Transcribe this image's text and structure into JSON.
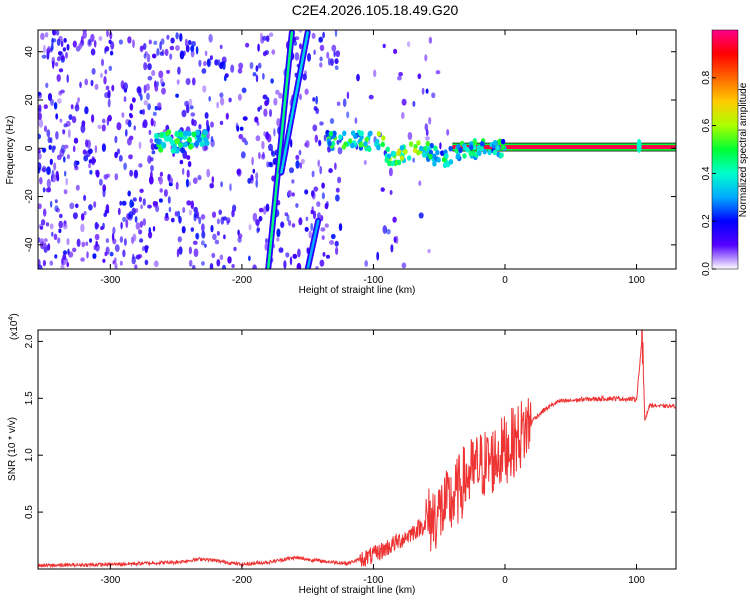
{
  "figure_title": "C2E4.2026.105.18.49.G20",
  "chart_data": [
    {
      "type": "heatmap",
      "title": "C2E4.2026.105.18.49.G20",
      "xlabel": "Height of straight line (km)",
      "ylabel": "Frequency (Hz)",
      "xlim": [
        -355,
        130
      ],
      "ylim": [
        -50,
        49
      ],
      "xticks": [
        -300,
        -200,
        -100,
        0,
        100
      ],
      "xtick_labels": [
        "-300",
        "-200",
        "-100",
        "0",
        "100"
      ],
      "yticks": [
        -40,
        -20,
        0,
        20,
        40
      ],
      "ytick_labels": [
        "-40",
        "-20",
        "0",
        "20",
        "40"
      ],
      "colorbar": {
        "label": "Normalized spectral amplitude",
        "range": [
          0,
          1
        ],
        "ticks": [
          0.0,
          0.2,
          0.4,
          0.6,
          0.8
        ],
        "tick_labels": [
          "0.0",
          "0.2",
          "0.4",
          "0.6",
          "0.8"
        ],
        "stops": [
          "#ffffff",
          "#5500ff",
          "#0000ff",
          "#00aaff",
          "#00ffcc",
          "#00ff33",
          "#aaff00",
          "#ffcc00",
          "#ff6600",
          "#ff0000",
          "#ff0088"
        ]
      },
      "features": [
        {
          "name": "carrier line",
          "x_range": [
            -40,
            130
          ],
          "frequency": 0.5,
          "amplitude": 0.95
        },
        {
          "name": "doppler streak 1",
          "from": [
            -180,
            -50
          ],
          "to": [
            -162,
            48
          ],
          "amplitude": 0.45
        },
        {
          "name": "doppler streak 2",
          "from": [
            -170,
            -10
          ],
          "to": [
            -150,
            48
          ],
          "amplitude": 0.35
        },
        {
          "name": "doppler streak 3",
          "from": [
            -150,
            -50
          ],
          "to": [
            -142,
            -30
          ],
          "amplitude": 0.3
        },
        {
          "name": "signal blob",
          "x_range": [
            -265,
            -225
          ],
          "frequency": 3,
          "amplitude": 0.35
        },
        {
          "name": "carrier spike",
          "x": 102,
          "frequency": 1,
          "amplitude": 0.4
        }
      ]
    },
    {
      "type": "line",
      "xlabel": "Height of straight line (km)",
      "ylabel": "SNR (10 * v/v)",
      "y_scale_label": "(x10",
      "y_scale_exp": "4",
      "y_scale_close": ")",
      "xlim": [
        -355,
        130
      ],
      "ylim": [
        0,
        2.1
      ],
      "xticks": [
        -300,
        -200,
        -100,
        0,
        100
      ],
      "xtick_labels": [
        "-300",
        "-200",
        "-100",
        "0",
        "100"
      ],
      "yticks": [
        0.5,
        1.0,
        1.5,
        2.0
      ],
      "ytick_labels": [
        "0.5",
        "1.0",
        "1.5",
        "2.0"
      ],
      "color": "#ee3333",
      "x": [
        -355,
        -300,
        -250,
        -230,
        -200,
        -180,
        -160,
        -140,
        -120,
        -100,
        -80,
        -60,
        -40,
        -30,
        -20,
        -10,
        0,
        10,
        20,
        30,
        40,
        60,
        80,
        100,
        104,
        106,
        110,
        120,
        130
      ],
      "y": [
        0.03,
        0.04,
        0.06,
        0.09,
        0.04,
        0.06,
        0.1,
        0.07,
        0.05,
        0.12,
        0.25,
        0.4,
        0.6,
        0.8,
        0.9,
        0.95,
        1.05,
        1.15,
        1.3,
        1.4,
        1.47,
        1.49,
        1.5,
        1.49,
        2.0,
        1.3,
        1.44,
        1.43,
        1.43
      ]
    }
  ]
}
